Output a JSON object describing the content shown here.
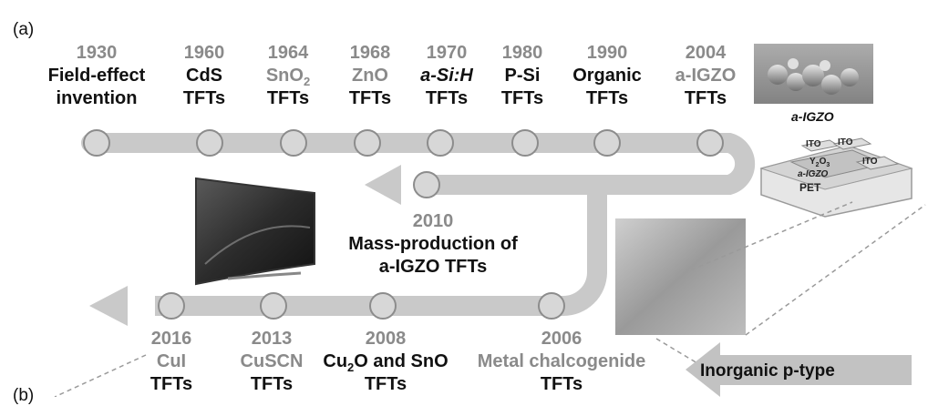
{
  "panel_label_a": "(a)",
  "panel_label_b": "(b)",
  "milestones_top": [
    {
      "year": "1930",
      "line1": "Field-effect",
      "line2": "invention"
    },
    {
      "year": "1960",
      "line1": "CdS",
      "line2": "TFTs"
    },
    {
      "year": "1964",
      "line1": "SnO",
      "line1_sub": "2",
      "line2": "TFTs"
    },
    {
      "year": "1968",
      "line1": "ZnO",
      "line2": "TFTs"
    },
    {
      "year": "1970",
      "line1": "a-Si:H",
      "line2": "TFTs"
    },
    {
      "year": "1980",
      "line1": "P-Si",
      "line2": "TFTs"
    },
    {
      "year": "1990",
      "line1": "Organic",
      "line2": "TFTs"
    },
    {
      "year": "2004",
      "line1": "a-IGZO",
      "line2": "TFTs"
    }
  ],
  "milestone_2010": {
    "year": "2010",
    "line1": "Mass-production of",
    "line2": "a-IGZO TFTs"
  },
  "milestones_bottom": [
    {
      "year": "2016",
      "line1": "CuI",
      "line2": "TFTs"
    },
    {
      "year": "2013",
      "line1": "CuSCN",
      "line2": "TFTs"
    },
    {
      "year": "2008",
      "line1_a": "Cu",
      "line1_sub": "2",
      "line1_b": "O and SnO",
      "line2": "TFTs"
    },
    {
      "year": "2006",
      "line1": "Metal chalcogenide",
      "line2": "TFTs"
    }
  ],
  "igzo_caption": "a-IGZO",
  "device_layers": {
    "ito_1": "ITO",
    "ito_2": "ITO",
    "ito_3": "ITO",
    "y2o3": "Y",
    "y2o3_sub": "2",
    "y2o3_b": "O",
    "y2o3_sub2": "3",
    "igzo": "a-IGZO",
    "pet": "PET"
  },
  "inorganic_ptype_label": "Inorganic p-type",
  "colors": {
    "track": "#c9c9c9",
    "node_fill": "#d7d7d7",
    "node_stroke": "#8c8c8c",
    "gray_text": "#8a8a8a",
    "dark_text": "#111111"
  }
}
